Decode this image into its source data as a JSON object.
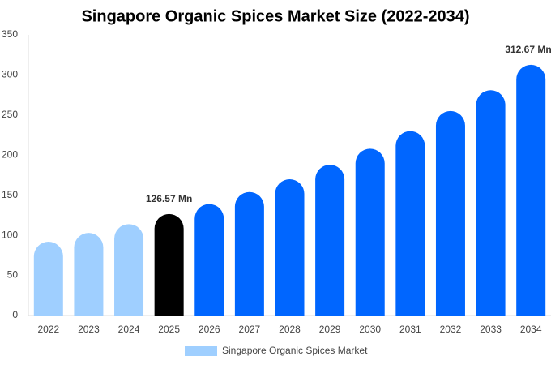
{
  "chart_data": {
    "type": "bar",
    "title": "Singapore Organic Spices Market Size (2022-2034)",
    "categories": [
      "2022",
      "2023",
      "2024",
      "2025",
      "2026",
      "2027",
      "2028",
      "2029",
      "2030",
      "2031",
      "2032",
      "2033",
      "2034"
    ],
    "series": [
      {
        "name": "Singapore Organic Spices Market",
        "color": "#9fcfff",
        "values": [
          92,
          103,
          114,
          126.57,
          139,
          154,
          170,
          188,
          208,
          230,
          255,
          281,
          312.67
        ],
        "value_labels": [
          null,
          null,
          null,
          "126.57 Mn",
          null,
          null,
          null,
          null,
          null,
          null,
          null,
          null,
          "312.67 Mn"
        ],
        "colors": [
          "#9fcfff",
          "#9fcfff",
          "#9fcfff",
          "#000000",
          "#0066ff",
          "#0066ff",
          "#0066ff",
          "#0066ff",
          "#0066ff",
          "#0066ff",
          "#0066ff",
          "#0066ff",
          "#0066ff"
        ]
      }
    ],
    "ylim": [
      0,
      350
    ],
    "yticks": [
      0,
      50,
      100,
      150,
      200,
      250,
      300,
      350
    ],
    "grid": false
  }
}
